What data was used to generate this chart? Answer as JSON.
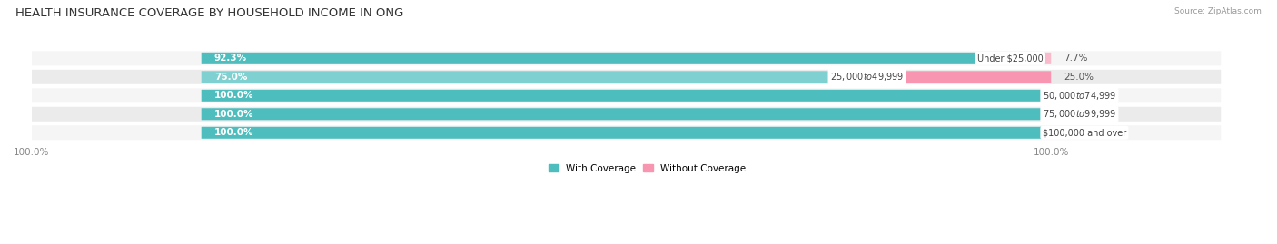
{
  "title": "HEALTH INSURANCE COVERAGE BY HOUSEHOLD INCOME IN ONG",
  "source": "Source: ZipAtlas.com",
  "categories": [
    "Under $25,000",
    "$25,000 to $49,999",
    "$50,000 to $74,999",
    "$75,000 to $99,999",
    "$100,000 and over"
  ],
  "with_coverage": [
    92.3,
    75.0,
    100.0,
    100.0,
    100.0
  ],
  "without_coverage": [
    7.7,
    25.0,
    0.0,
    0.0,
    0.0
  ],
  "color_with": "#4DBDBD",
  "color_with_light": "#7FD0D0",
  "color_without": "#F895B0",
  "color_without_light": "#F9BBCC",
  "bar_row_bg_odd": "#F0F0F0",
  "bar_row_bg_even": "#E8E8E8",
  "title_fontsize": 9.5,
  "label_fontsize": 7.5,
  "cat_fontsize": 7,
  "tick_fontsize": 7.5,
  "legend_fontsize": 7.5,
  "fig_width": 14.06,
  "fig_height": 2.69,
  "xlim_left": -50,
  "xlim_right": 120,
  "total_bar_width": 100
}
